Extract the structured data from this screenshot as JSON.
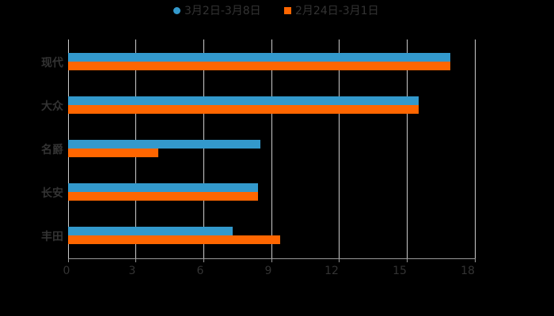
{
  "chart_data": {
    "type": "bar",
    "orientation": "horizontal",
    "title": "",
    "xlabel": "",
    "ylabel": "",
    "categories": [
      "现代",
      "大众",
      "名爵",
      "长安",
      "丰田"
    ],
    "series": [
      {
        "name": "3月2日-3月8日",
        "color": "#3399CC",
        "marker": "circle",
        "values": [
          16.9,
          15.5,
          8.5,
          8.4,
          7.3
        ]
      },
      {
        "name": "2月24日-3月1日",
        "color": "#FF6600",
        "marker": "square",
        "values": [
          16.9,
          15.5,
          4.0,
          8.4,
          9.4
        ]
      }
    ],
    "xlim": [
      0,
      18
    ],
    "xticks": [
      "0",
      "3",
      "6",
      "9",
      "12",
      "15",
      "18"
    ],
    "grid": true,
    "legend_position": "top"
  },
  "colors": {
    "background": "#000000",
    "text": "#333333",
    "grid": "#cccccc",
    "axis": "#999999"
  }
}
